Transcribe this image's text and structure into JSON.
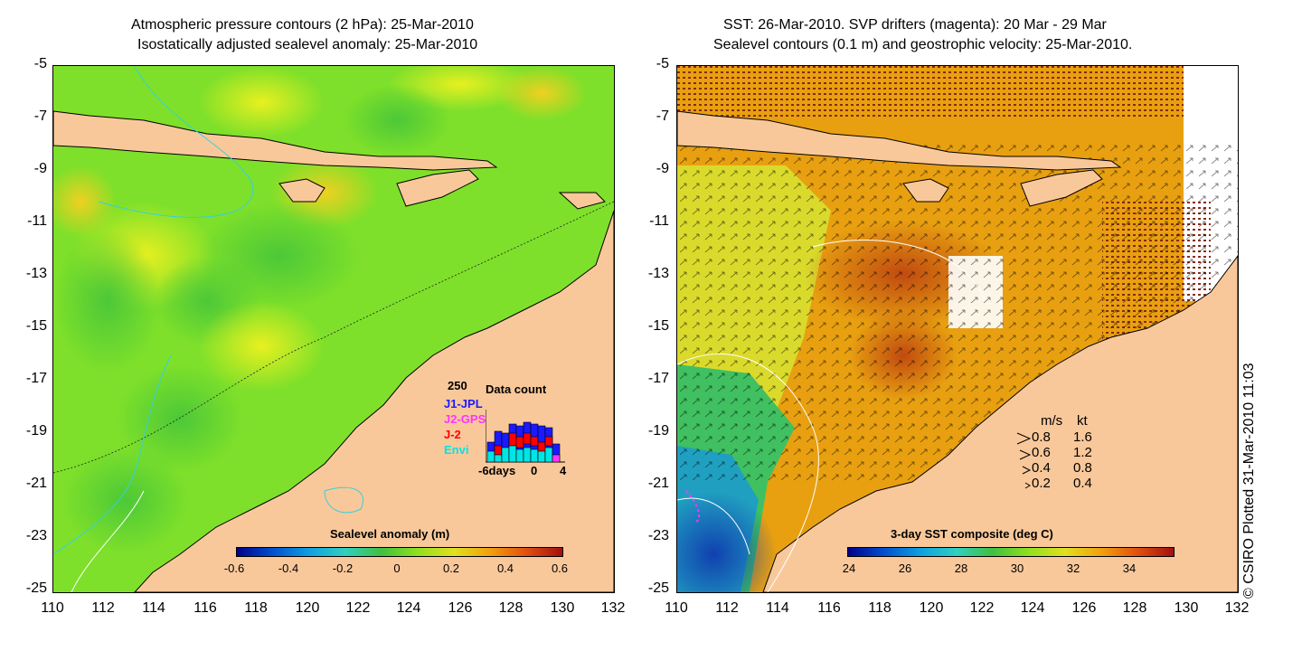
{
  "left_panel": {
    "title_line1": "Atmospheric pressure contours (2 hPa): 25-Mar-2010",
    "title_line2": "Isostatically adjusted sealevel anomaly: 25-Mar-2010",
    "colorbar_title": "Sealevel anomaly (m)",
    "colorbar_ticks": [
      "-0.6",
      "-0.4",
      "-0.2",
      "0",
      "0.2",
      "0.4",
      "0.6"
    ],
    "inset": {
      "title": "Data count",
      "max_label": "250",
      "series": [
        "J1-JPL",
        "J2-GPS",
        "J-2",
        "Envi"
      ],
      "series_colors": [
        "#1a1aff",
        "#ff33ff",
        "#ff0000",
        "#00e5e5"
      ],
      "x_label": "-6days",
      "x_mid": "0",
      "x_end": "4"
    }
  },
  "right_panel": {
    "title_line1": "SST: 26-Mar-2010. SVP drifters (magenta): 20 Mar - 29 Mar",
    "title_line2": "Sealevel contours (0.1 m) and geostrophic velocity: 25-Mar-2010.",
    "colorbar_title": "3-day SST composite (deg C)",
    "colorbar_ticks": [
      "24",
      "26",
      "28",
      "30",
      "32",
      "34"
    ],
    "velocity_legend": {
      "header_ms": "m/s",
      "header_kt": "kt",
      "rows": [
        {
          "ms": "0.8",
          "kt": "1.6"
        },
        {
          "ms": "0.6",
          "kt": "1.2"
        },
        {
          "ms": "0.4",
          "kt": "0.8"
        },
        {
          "ms": "0.2",
          "kt": "0.4"
        }
      ]
    }
  },
  "axes": {
    "lat_ticks": [
      "-5",
      "-7",
      "-9",
      "-11",
      "-13",
      "-15",
      "-17",
      "-19",
      "-21",
      "-23",
      "-25"
    ],
    "lon_ticks": [
      "110",
      "112",
      "114",
      "116",
      "118",
      "120",
      "122",
      "124",
      "126",
      "128",
      "130",
      "132"
    ]
  },
  "credit": "© CSIRO Plotted 31-Mar-2010 11:03",
  "colors": {
    "land": "#f9c89a",
    "sla_green": "#7ee02a",
    "sla_yellow": "#d8f020",
    "sst_orange": "#e8a010",
    "sst_dark": "#b04010",
    "sst_blue": "#2060d0"
  }
}
